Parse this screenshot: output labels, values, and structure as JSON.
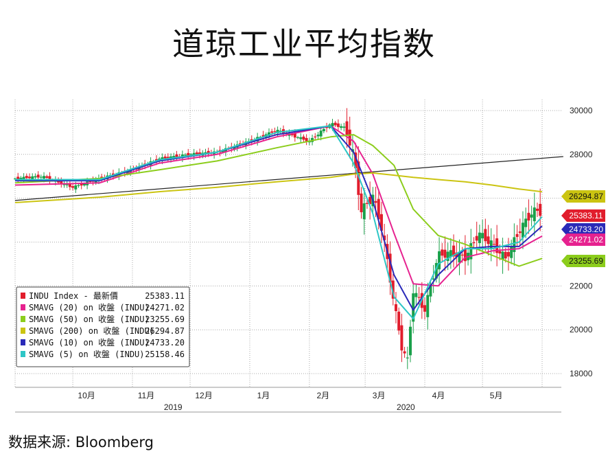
{
  "title": "道琼工业平均指数",
  "source": "数据来源: Bloomberg",
  "chart_data": {
    "type": "line",
    "ylim": [
      17500,
      30500
    ],
    "yticks": [
      18000,
      20000,
      22000,
      24000,
      26000,
      28000,
      30000
    ],
    "ytick_labels": [
      "18000",
      "20000",
      "22000",
      "24000",
      "26000",
      "28000",
      "30000"
    ],
    "month_labels": [
      {
        "label": "10月",
        "date": "2019-10-01"
      },
      {
        "label": "11月",
        "date": "2019-11-01"
      },
      {
        "label": "12月",
        "date": "2019-12-01"
      },
      {
        "label": "1月",
        "date": "2020-01-01"
      },
      {
        "label": "2月",
        "date": "2020-02-01"
      },
      {
        "label": "3月",
        "date": "2020-03-01"
      },
      {
        "label": "4月",
        "date": "2020-04-01"
      },
      {
        "label": "5月",
        "date": "2020-05-01"
      }
    ],
    "year_labels": [
      {
        "label": "2019",
        "date": "2019-11-15"
      },
      {
        "label": "2020",
        "date": "2020-03-15"
      }
    ],
    "grid": true,
    "legend_position": "bottom-left",
    "price": {
      "name": "INDU Index - 最新價",
      "dates": [
        "2019-09-01",
        "2019-09-15",
        "2019-10-01",
        "2019-10-15",
        "2019-11-01",
        "2019-11-15",
        "2019-12-01",
        "2019-12-15",
        "2020-01-01",
        "2020-01-15",
        "2020-02-01",
        "2020-02-12",
        "2020-02-20",
        "2020-02-24",
        "2020-02-28",
        "2020-03-05",
        "2020-03-10",
        "2020-03-16",
        "2020-03-20",
        "2020-03-23",
        "2020-03-26",
        "2020-04-01",
        "2020-04-08",
        "2020-04-15",
        "2020-04-22",
        "2020-04-29",
        "2020-05-06",
        "2020-05-13",
        "2020-05-20",
        "2020-05-27",
        "2020-06-01"
      ],
      "values": [
        26900,
        27000,
        26500,
        26900,
        27300,
        27800,
        28000,
        28100,
        28600,
        29100,
        28600,
        29400,
        29200,
        27900,
        25400,
        26100,
        24500,
        21200,
        19200,
        18600,
        21800,
        20900,
        23400,
        23500,
        23300,
        24400,
        23900,
        23250,
        24500,
        25400,
        25383
      ]
    },
    "series": [
      {
        "name": "SMAVG (20) on 收盤 (INDU)",
        "last": 24271.02,
        "color": "#e6228f",
        "dates": [
          "2019-09-01",
          "2019-10-15",
          "2019-11-15",
          "2019-12-15",
          "2020-01-15",
          "2020-02-12",
          "2020-02-24",
          "2020-03-05",
          "2020-03-16",
          "2020-03-26",
          "2020-04-08",
          "2020-04-22",
          "2020-05-06",
          "2020-05-20",
          "2020-06-01"
        ],
        "values": [
          26600,
          26700,
          27600,
          28000,
          28800,
          29300,
          28600,
          27100,
          24400,
          22100,
          22000,
          23300,
          23600,
          23700,
          24271
        ]
      },
      {
        "name": "SMAVG (50) on 收盤 (INDU)",
        "last": 23255.69,
        "color": "#8ccd1c",
        "dates": [
          "2019-09-01",
          "2019-10-15",
          "2019-11-15",
          "2019-12-15",
          "2020-01-15",
          "2020-02-12",
          "2020-02-24",
          "2020-03-05",
          "2020-03-16",
          "2020-03-26",
          "2020-04-08",
          "2020-04-22",
          "2020-05-06",
          "2020-05-20",
          "2020-06-01"
        ],
        "values": [
          26700,
          26900,
          27300,
          27700,
          28300,
          28800,
          28900,
          28400,
          27500,
          25500,
          24300,
          23900,
          23400,
          22900,
          23256
        ]
      },
      {
        "name": "SMAVG (200) on 收盤 (INDU)",
        "last": 26294.87,
        "color": "#cbc411",
        "dates": [
          "2019-09-01",
          "2019-10-15",
          "2019-11-15",
          "2019-12-15",
          "2020-01-15",
          "2020-02-12",
          "2020-02-24",
          "2020-03-05",
          "2020-03-16",
          "2020-03-26",
          "2020-04-08",
          "2020-04-22",
          "2020-05-06",
          "2020-05-20",
          "2020-06-01"
        ],
        "values": [
          25800,
          26050,
          26300,
          26500,
          26750,
          26950,
          27100,
          27150,
          27050,
          26950,
          26850,
          26750,
          26600,
          26420,
          26295
        ]
      },
      {
        "name": "SMAVG (10) on 收盤 (INDU)",
        "last": 24733.2,
        "color": "#2a2ab8",
        "dates": [
          "2019-09-01",
          "2019-10-15",
          "2019-11-15",
          "2019-12-15",
          "2020-01-15",
          "2020-02-12",
          "2020-02-24",
          "2020-03-05",
          "2020-03-16",
          "2020-03-26",
          "2020-04-08",
          "2020-04-22",
          "2020-05-06",
          "2020-05-20",
          "2020-06-01"
        ],
        "values": [
          26800,
          26800,
          27700,
          28100,
          28900,
          29300,
          28100,
          25900,
          22500,
          20900,
          22500,
          23700,
          23800,
          23800,
          24733
        ]
      },
      {
        "name": "SMAVG (5) on 收盤 (INDU)",
        "last": 25158.46,
        "color": "#2ec6c6",
        "dates": [
          "2019-09-01",
          "2019-10-15",
          "2019-11-15",
          "2019-12-15",
          "2020-01-15",
          "2020-02-12",
          "2020-02-24",
          "2020-03-05",
          "2020-03-16",
          "2020-03-26",
          "2020-04-08",
          "2020-04-22",
          "2020-05-06",
          "2020-05-20",
          "2020-06-01"
        ],
        "values": [
          26850,
          26850,
          27750,
          28100,
          29000,
          29300,
          27600,
          25300,
          21500,
          20500,
          23000,
          23700,
          23700,
          24000,
          25158
        ]
      }
    ],
    "trendline": {
      "color": "#222222",
      "dates": [
        "2019-09-01",
        "2020-06-12"
      ],
      "values": [
        25900,
        27900
      ]
    },
    "tags": [
      {
        "text": "26294.87",
        "value": 26294.87,
        "bg": "#cbc411",
        "fg": "#111111"
      },
      {
        "text": "25383.11",
        "value": 25383.11,
        "bg": "#e11d2c",
        "fg": "#ffffff"
      },
      {
        "text": "24733.20",
        "value": 24733.2,
        "bg": "#2a2ab8",
        "fg": "#ffffff"
      },
      {
        "text": "24271.02",
        "value": 24271.02,
        "bg": "#e6228f",
        "fg": "#ffffff"
      },
      {
        "text": "23255.69",
        "value": 23255.69,
        "bg": "#8ccd1c",
        "fg": "#111111"
      }
    ],
    "legend": [
      {
        "marker": "#e11d2c",
        "label": "INDU Index - 最新價",
        "value": "25383.11"
      },
      {
        "marker": "#e6228f",
        "label": "SMAVG (20)  on 收盤 (INDU)",
        "value": "24271.02"
      },
      {
        "marker": "#8ccd1c",
        "label": "SMAVG (50)  on 收盤 (INDU)",
        "value": "23255.69"
      },
      {
        "marker": "#cbc411",
        "label": "SMAVG (200)  on 收盤 (INDU)",
        "value": "26294.87"
      },
      {
        "marker": "#2a2ab8",
        "label": "SMAVG (10)  on 收盤 (INDU)",
        "value": "24733.20"
      },
      {
        "marker": "#2ec6c6",
        "label": "SMAVG (5)  on 收盤 (INDU)",
        "value": "25158.46"
      }
    ],
    "colors": {
      "up": "#1aa04a",
      "down": "#e11d2c",
      "grid": "#a8a8a8"
    }
  }
}
